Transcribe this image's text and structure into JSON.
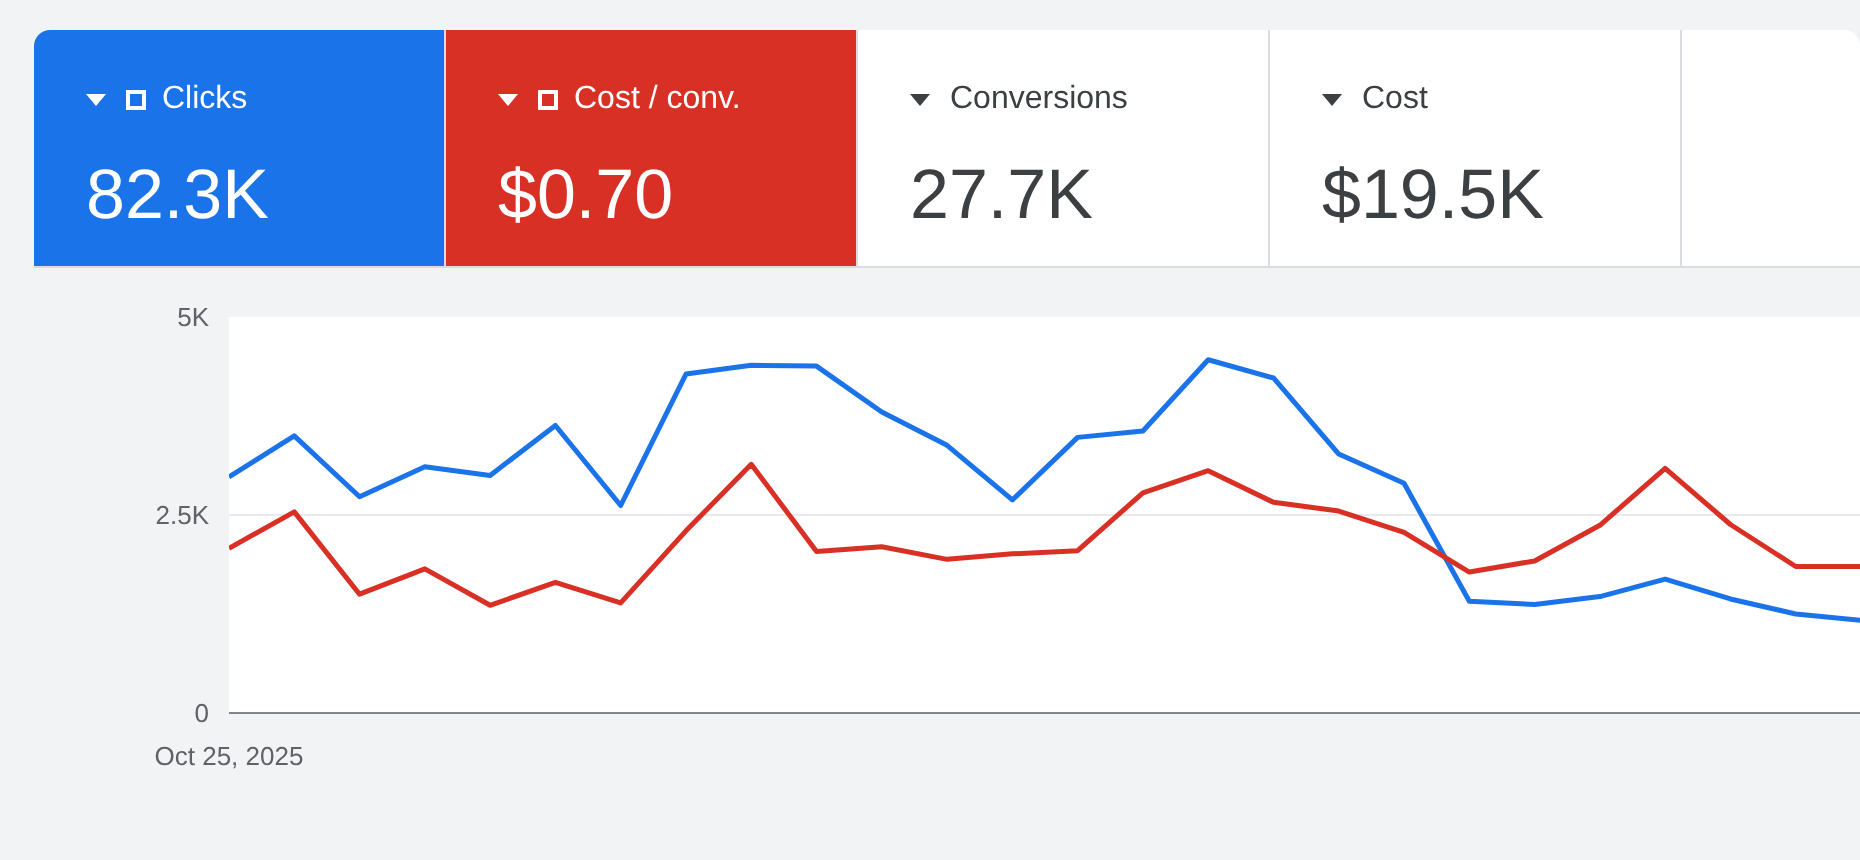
{
  "chart_data": {
    "type": "line",
    "categories": [
      "Oct 25, 2025",
      null,
      null,
      null,
      null,
      null,
      null,
      null,
      null,
      null,
      null,
      null,
      null,
      null,
      null,
      null,
      null,
      null,
      null,
      null,
      null,
      null,
      null,
      null,
      null,
      null
    ],
    "series": [
      {
        "name": "Clicks",
        "color": "#1a73e8",
        "values": [
          2980,
          3500,
          2730,
          3110,
          3000,
          3630,
          2620,
          4280,
          4390,
          4380,
          3800,
          3380,
          2690,
          3480,
          3560,
          4460,
          4230,
          3270,
          2900,
          1410,
          1370,
          1470,
          1690,
          1440,
          1250,
          1170
        ]
      },
      {
        "name": "Cost / conv.",
        "color": "#d93025",
        "values": [
          2080,
          2540,
          1500,
          1820,
          1360,
          1650,
          1390,
          2300,
          3140,
          2040,
          2100,
          1940,
          2010,
          2050,
          2780,
          3060,
          2660,
          2550,
          2280,
          1780,
          1920,
          2370,
          3090,
          2380,
          1850,
          1850
        ]
      }
    ],
    "ylim": [
      0,
      5000
    ],
    "yticks": [
      {
        "value": 0,
        "label": "0"
      },
      {
        "value": 2500,
        "label": "2.5K"
      },
      {
        "value": 5000,
        "label": "5K"
      }
    ],
    "grid": "y",
    "legend": "top",
    "annotations": [
      "82.3K",
      "$0.70",
      "Conversions",
      "27.7K",
      "Cost",
      "$19.5K"
    ]
  }
}
